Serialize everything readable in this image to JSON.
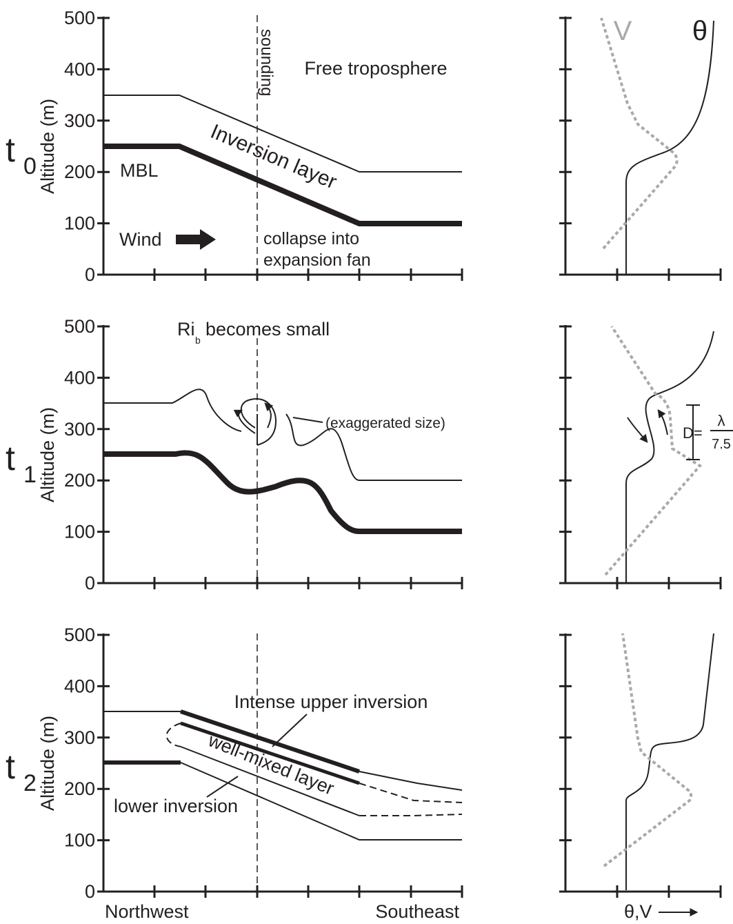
{
  "y_axis_label": "Altitude (m)",
  "y_ticks": [
    0,
    100,
    200,
    300,
    400,
    500
  ],
  "x_labels": {
    "left": "Northwest",
    "right": "Southeast"
  },
  "profile_axis_label": "θ,V",
  "panels": [
    {
      "time": "t",
      "subscript": "0",
      "free_troposphere": "Free troposphere",
      "inversion_layer": "Inversion layer",
      "mbl": "MBL",
      "wind": "Wind",
      "sounding": "sounding",
      "collapse_1": "collapse into",
      "collapse_2": "expansion fan",
      "v_label": "V",
      "theta_label": "θ"
    },
    {
      "time": "t",
      "subscript": "1",
      "ri": "Ri",
      "ri_sub": "b",
      "ri_rest": "becomes small",
      "exaggerated": "(exaggerated size)",
      "d_eq": "D=",
      "lambda": "λ",
      "divisor": "7.5"
    },
    {
      "time": "t",
      "subscript": "2",
      "upper_inversion": "Intense upper inversion",
      "mixed_layer": "well-mixed layer",
      "lower_inversion": "lower inversion"
    }
  ]
}
